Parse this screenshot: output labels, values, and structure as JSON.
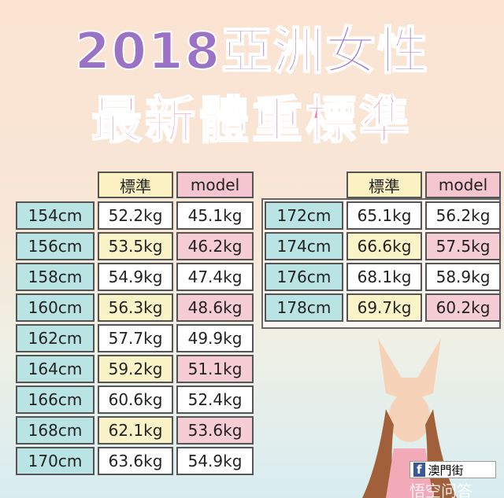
{
  "header": {
    "title_line1": "2018亞洲女性",
    "title_line2": "最新體重標準"
  },
  "tables": [
    {
      "columns": [
        "標準",
        "model"
      ],
      "rows": [
        [
          "154cm",
          "52.2kg",
          "45.1kg"
        ],
        [
          "156cm",
          "53.5kg",
          "46.2kg"
        ],
        [
          "158cm",
          "54.9kg",
          "47.4kg"
        ],
        [
          "160cm",
          "56.3kg",
          "48.6kg"
        ],
        [
          "162cm",
          "57.7kg",
          "49.9kg"
        ],
        [
          "164cm",
          "59.2kg",
          "51.1kg"
        ],
        [
          "166cm",
          "60.6kg",
          "52.4kg"
        ],
        [
          "168cm",
          "62.1kg",
          "53.6kg"
        ],
        [
          "170cm",
          "63.6kg",
          "54.9kg"
        ]
      ]
    },
    {
      "columns": [
        "標準",
        "model"
      ],
      "rows": [
        [
          "172cm",
          "65.1kg",
          "56.2kg"
        ],
        [
          "174cm",
          "66.6kg",
          "57.5kg"
        ],
        [
          "176cm",
          "68.1kg",
          "58.9kg"
        ],
        [
          "178cm",
          "69.7kg",
          "60.2kg"
        ]
      ]
    }
  ],
  "footer": {
    "source": "澳門街",
    "watermark": "悟空问答"
  }
}
